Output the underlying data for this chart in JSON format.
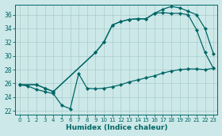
{
  "xlabel": "Humidex (Indice chaleur)",
  "bg_color": "#cde8e8",
  "grid_color": "#aacccc",
  "line_color": "#006666",
  "xlim": [
    -0.5,
    23.5
  ],
  "ylim": [
    21.5,
    37.5
  ],
  "yticks": [
    22,
    24,
    26,
    28,
    30,
    32,
    34,
    36
  ],
  "xticks": [
    0,
    1,
    2,
    3,
    4,
    5,
    6,
    7,
    8,
    9,
    10,
    11,
    12,
    13,
    14,
    15,
    16,
    17,
    18,
    19,
    20,
    21,
    22,
    23
  ],
  "line_bottom_x": [
    0,
    1,
    2,
    3,
    4,
    5,
    6,
    7,
    8,
    9,
    10,
    11,
    12,
    13,
    14,
    15,
    16,
    17,
    18,
    19,
    20,
    21,
    22,
    23
  ],
  "line_bottom_y": [
    25.8,
    25.6,
    25.1,
    24.8,
    24.5,
    22.8,
    22.3,
    27.4,
    25.3,
    25.2,
    25.3,
    25.5,
    25.8,
    26.2,
    26.5,
    26.8,
    27.1,
    27.5,
    27.8,
    28.0,
    28.1,
    28.1,
    28.0,
    28.2
  ],
  "line_mid_x": [
    0,
    2,
    3,
    4,
    9,
    10,
    11,
    12,
    13,
    14,
    15,
    16,
    17,
    18,
    19,
    20,
    21,
    22,
    23
  ],
  "line_mid_y": [
    25.8,
    25.8,
    25.3,
    24.8,
    30.5,
    32.0,
    34.5,
    35.0,
    35.3,
    35.4,
    35.4,
    36.2,
    36.3,
    36.2,
    36.2,
    36.0,
    33.8,
    30.5,
    28.2
  ],
  "line_top_x": [
    0,
    2,
    3,
    4,
    9,
    10,
    11,
    12,
    13,
    14,
    15,
    16,
    17,
    18,
    19,
    20,
    21,
    22,
    23
  ],
  "line_top_y": [
    25.8,
    25.8,
    25.3,
    24.8,
    30.5,
    32.0,
    34.5,
    35.0,
    35.3,
    35.4,
    35.4,
    36.2,
    36.8,
    37.2,
    37.0,
    36.5,
    36.0,
    34.0,
    30.3
  ]
}
